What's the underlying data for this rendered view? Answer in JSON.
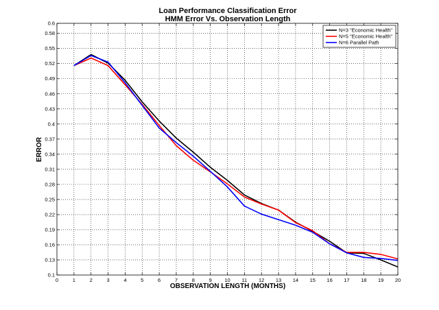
{
  "chart_data": {
    "type": "line",
    "title": "Loan Performance Classification Error",
    "subtitle": "HMM Error Vs. Observation Length",
    "xlabel": "OBSERVATION LENGTH (MONTHS)",
    "ylabel": "ERROR",
    "xlim": [
      0,
      20
    ],
    "ylim": [
      0.1,
      0.6
    ],
    "xticks": [
      0,
      1,
      2,
      3,
      4,
      5,
      6,
      7,
      8,
      9,
      10,
      11,
      12,
      13,
      14,
      15,
      16,
      17,
      18,
      19,
      20
    ],
    "yticks": [
      0.1,
      0.13,
      0.16,
      0.19,
      0.22,
      0.25,
      0.28,
      0.31,
      0.34,
      0.37,
      0.4,
      0.43,
      0.46,
      0.49,
      0.52,
      0.55,
      0.58,
      0.6
    ],
    "ytick_labels": [
      "0.1",
      "0.13",
      "0.16",
      "0.19",
      "0.22",
      "0.25",
      "0.28",
      "0.31",
      "0.34",
      "0.37",
      "0.4",
      "0.43",
      "0.46",
      "0.49",
      "0.52",
      "0.55",
      "0.58",
      "0.6"
    ],
    "grid": true,
    "legend_position": "top-right",
    "x": [
      1,
      2,
      3,
      4,
      5,
      6,
      7,
      8,
      9,
      10,
      11,
      12,
      13,
      14,
      15,
      16,
      17,
      18,
      19,
      20
    ],
    "series": [
      {
        "name": "N=3 \"Economic Health\"",
        "color": "#000000",
        "values": [
          0.516,
          0.538,
          0.521,
          0.487,
          0.444,
          0.406,
          0.372,
          0.344,
          0.314,
          0.288,
          0.259,
          0.242,
          0.229,
          0.205,
          0.187,
          0.167,
          0.144,
          0.143,
          0.13,
          0.116
        ]
      },
      {
        "name": "N=5 \"Economic Health\"",
        "color": "#ff0000",
        "values": [
          0.516,
          0.531,
          0.516,
          0.478,
          0.439,
          0.397,
          0.357,
          0.328,
          0.305,
          0.281,
          0.255,
          0.241,
          0.229,
          0.204,
          0.188,
          0.162,
          0.145,
          0.145,
          0.141,
          0.132
        ]
      },
      {
        "name": "N=6 Parallel Path",
        "color": "#0000ff",
        "values": [
          0.516,
          0.536,
          0.523,
          0.482,
          0.437,
          0.392,
          0.363,
          0.336,
          0.306,
          0.275,
          0.237,
          0.221,
          0.21,
          0.199,
          0.185,
          0.162,
          0.144,
          0.135,
          0.133,
          0.129
        ]
      }
    ]
  }
}
